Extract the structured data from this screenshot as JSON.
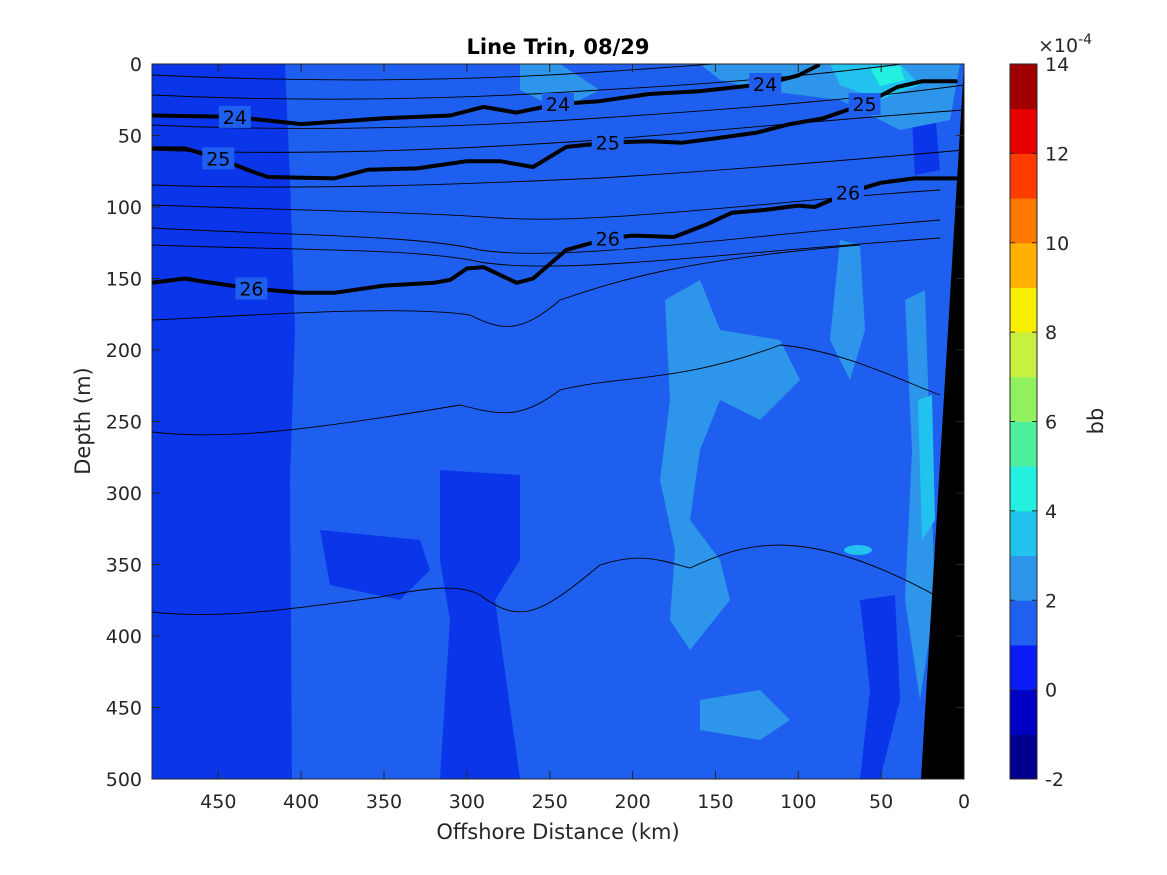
{
  "chart_data": {
    "type": "contour",
    "title": "Line Trin, 08/29",
    "xlabel": "Offshore Distance (km)",
    "ylabel": "Depth (m)",
    "xlim": [
      490,
      0
    ],
    "ylim": [
      0,
      500
    ],
    "x_reversed": true,
    "y_reversed": true,
    "x_ticks": [
      "450",
      "400",
      "350",
      "300",
      "250",
      "200",
      "150",
      "100",
      "50",
      "0"
    ],
    "y_ticks": [
      "0",
      "50",
      "100",
      "150",
      "200",
      "250",
      "300",
      "350",
      "400",
      "450",
      "500"
    ],
    "colorbar": {
      "label": "bb",
      "exponent": "×10",
      "exponent_power": "-4",
      "range": [
        -2,
        14
      ],
      "ticks": [
        "-2",
        "0",
        "2",
        "4",
        "6",
        "8",
        "10",
        "12",
        "14"
      ],
      "colors": [
        "#00008f",
        "#0000c4",
        "#0a1cf5",
        "#1f60ee",
        "#2d95ea",
        "#21c2ee",
        "#24f0e0",
        "#4ef0a0",
        "#90f060",
        "#c8f040",
        "#f8f000",
        "#ffb000",
        "#ff7800",
        "#ff3c00",
        "#e80000",
        "#a00000"
      ]
    },
    "field_description_levels": {
      "background": 1,
      "patches": [
        2,
        3,
        4,
        5
      ]
    },
    "density_contours": {
      "labeled_levels": [
        "24",
        "25",
        "26"
      ],
      "series": [
        {
          "name": "24",
          "points": [
            [
              490,
              36
            ],
            [
              440,
              37
            ],
            [
              400,
              42
            ],
            [
              350,
              38
            ],
            [
              310,
              36
            ],
            [
              290,
              30
            ],
            [
              270,
              34
            ],
            [
              245,
              28
            ],
            [
              220,
              26
            ],
            [
              190,
              21
            ],
            [
              160,
              19
            ],
            [
              120,
              14
            ],
            [
              100,
              8
            ],
            [
              88,
              1
            ]
          ]
        },
        {
          "name": "25",
          "points": [
            [
              490,
              59
            ],
            [
              470,
              59
            ],
            [
              450,
              66
            ],
            [
              430,
              75
            ],
            [
              420,
              79
            ],
            [
              380,
              80
            ],
            [
              360,
              74
            ],
            [
              330,
              73
            ],
            [
              300,
              68
            ],
            [
              280,
              68
            ],
            [
              260,
              72
            ],
            [
              240,
              58
            ],
            [
              215,
              55
            ],
            [
              190,
              54
            ],
            [
              170,
              55
            ],
            [
              150,
              52
            ],
            [
              125,
              48
            ],
            [
              105,
              42
            ],
            [
              85,
              38
            ],
            [
              60,
              28
            ],
            [
              40,
              16
            ],
            [
              25,
              12
            ],
            [
              5,
              12
            ]
          ]
        },
        {
          "name": "26",
          "points": [
            [
              490,
              153
            ],
            [
              470,
              150
            ],
            [
              460,
              152
            ],
            [
              430,
              157
            ],
            [
              400,
              160
            ],
            [
              380,
              160
            ],
            [
              350,
              155
            ],
            [
              320,
              153
            ],
            [
              310,
              151
            ],
            [
              300,
              143
            ],
            [
              290,
              142
            ],
            [
              270,
              153
            ],
            [
              260,
              150
            ],
            [
              240,
              130
            ],
            [
              215,
              122
            ],
            [
              200,
              120
            ],
            [
              175,
              121
            ],
            [
              155,
              112
            ],
            [
              140,
              104
            ],
            [
              120,
              102
            ],
            [
              100,
              99
            ],
            [
              90,
              100
            ],
            [
              70,
              90
            ],
            [
              50,
              83
            ],
            [
              30,
              80
            ],
            [
              5,
              80
            ]
          ]
        }
      ]
    }
  }
}
